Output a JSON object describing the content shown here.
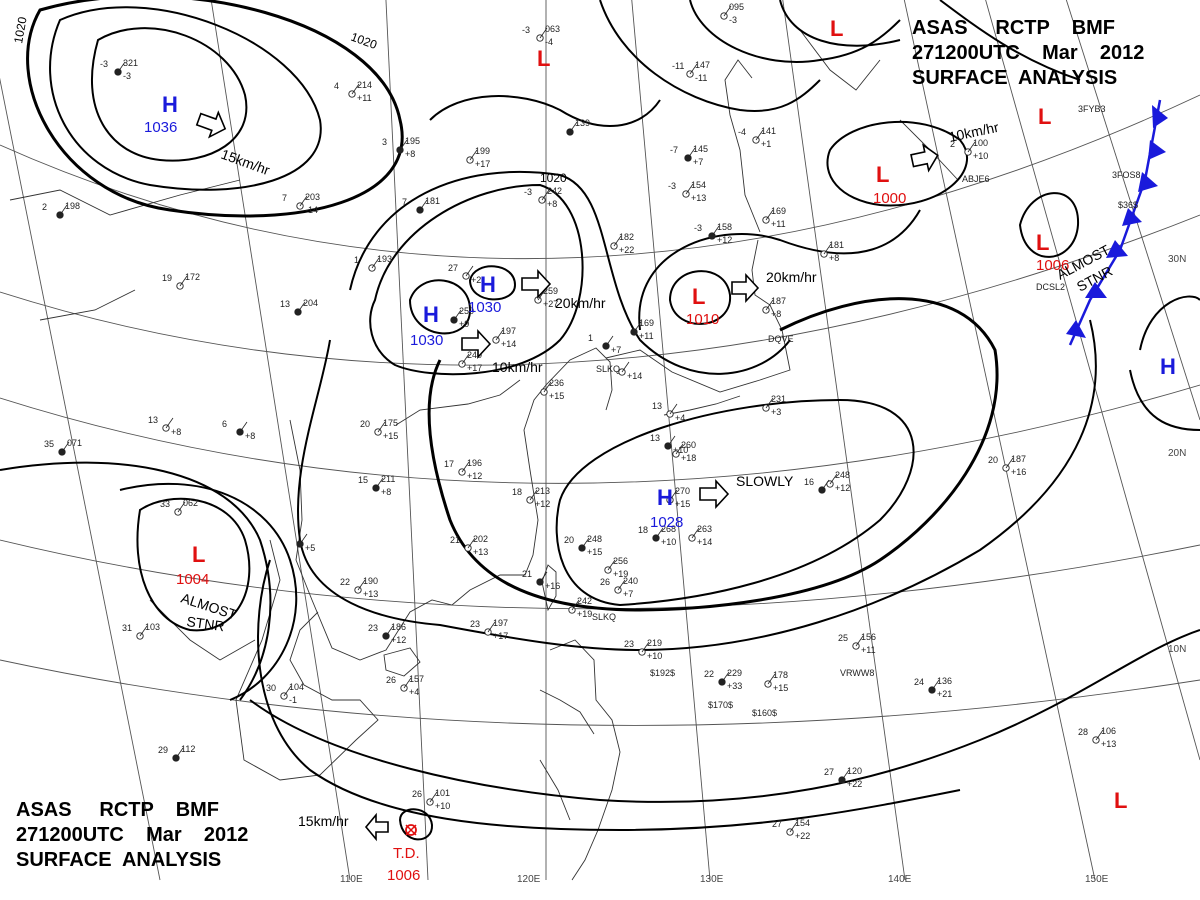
{
  "header": {
    "title_row1": [
      "ASAS",
      "RCTP",
      "BMF"
    ],
    "title_row2": [
      "271200UTC",
      "Mar",
      "2012"
    ],
    "title_row3": "SURFACE  ANALYSIS"
  },
  "colors": {
    "high": "#1a1adb",
    "low": "#e01010",
    "front": "#1a1adb",
    "isobar": "#000000",
    "grid": "#666666"
  },
  "isobar_labels": [
    "1020",
    "1020",
    "1020"
  ],
  "pressure_centers": [
    {
      "type": "H",
      "value": "1036",
      "motion": "15km/hr"
    },
    {
      "type": "H",
      "value": "1030",
      "motion": "20km/hr"
    },
    {
      "type": "H",
      "value": "1030",
      "motion": "10km/hr"
    },
    {
      "type": "H",
      "value": "1028",
      "motion": "SLOWLY"
    },
    {
      "type": "H",
      "value": ""
    },
    {
      "type": "L",
      "value": "1010",
      "motion": "20km/hr"
    },
    {
      "type": "L",
      "value": "1000",
      "motion": "10km/hr"
    },
    {
      "type": "L",
      "value": "1006",
      "note": [
        "ALMOST",
        "STNR"
      ]
    },
    {
      "type": "L",
      "value": "1004",
      "note": [
        "ALMOST",
        "STNR"
      ]
    },
    {
      "type": "L",
      "value": ""
    },
    {
      "type": "L",
      "value": ""
    },
    {
      "type": "L",
      "value": ""
    },
    {
      "type": "L",
      "value": ""
    }
  ],
  "tropical_depression": {
    "label": "T.D.",
    "value": "1006",
    "motion": "15km/hr"
  },
  "longitude_labels": [
    "110E",
    "120E",
    "130E",
    "140E",
    "150E"
  ],
  "latitude_labels": [
    "30N",
    "20N",
    "10N"
  ],
  "stations": [
    {
      "t": "-3",
      "p": "321",
      "d": "-3"
    },
    {
      "t": "4",
      "p": "214",
      "d": "+11"
    },
    {
      "t": "-3",
      "p": "063",
      "d": "-4"
    },
    {
      "t": "",
      "p": "139",
      "d": ""
    },
    {
      "t": "-11",
      "p": "147",
      "d": "-11"
    },
    {
      "t": "",
      "p": "095",
      "d": "-3"
    },
    {
      "t": "-7",
      "p": "145",
      "d": "+7"
    },
    {
      "t": "-4",
      "p": "141",
      "d": "+1"
    },
    {
      "t": "2",
      "p": "100",
      "d": "+10"
    },
    {
      "t": "3",
      "p": "195",
      "d": "+8"
    },
    {
      "t": "",
      "p": "199",
      "d": "+17"
    },
    {
      "t": "7",
      "p": "203",
      "d": "-14"
    },
    {
      "t": "7",
      "p": "181",
      "d": ""
    },
    {
      "t": "-3",
      "p": "242",
      "d": "+8"
    },
    {
      "t": "-3",
      "p": "154",
      "d": "+13"
    },
    {
      "t": "-3",
      "p": "158",
      "d": "+12"
    },
    {
      "t": "",
      "p": "169",
      "d": "+11"
    },
    {
      "t": "",
      "p": "182",
      "d": "+22"
    },
    {
      "t": "2",
      "p": "198",
      "d": ""
    },
    {
      "t": "19",
      "p": "172",
      "d": ""
    },
    {
      "t": "1",
      "p": "193",
      "d": ""
    },
    {
      "t": "13",
      "p": "204",
      "d": ""
    },
    {
      "t": "27",
      "p": "",
      "d": "+2"
    },
    {
      "t": "",
      "p": "259",
      "d": "+27"
    },
    {
      "t": "",
      "p": "250",
      "d": "+9"
    },
    {
      "t": "",
      "p": "197",
      "d": "+14"
    },
    {
      "t": "",
      "p": "240",
      "d": "+17"
    },
    {
      "t": "",
      "p": "169",
      "d": "+11"
    },
    {
      "t": "",
      "p": "187",
      "d": "+8"
    },
    {
      "t": "",
      "p": "181",
      "d": "+8"
    },
    {
      "t": "1",
      "p": "",
      "d": "+7"
    },
    {
      "t": "",
      "p": "236",
      "d": "+15"
    },
    {
      "t": "",
      "p": "",
      "d": "+14"
    },
    {
      "t": "6",
      "p": "",
      "d": "+8"
    },
    {
      "t": "13",
      "p": "",
      "d": "+8"
    },
    {
      "t": "20",
      "p": "175",
      "d": "+15"
    },
    {
      "t": "35",
      "p": "071",
      "d": ""
    },
    {
      "t": "13",
      "p": "",
      "d": "+4"
    },
    {
      "t": "",
      "p": "231",
      "d": "+3"
    },
    {
      "t": "13",
      "p": "",
      "d": "+10"
    },
    {
      "t": "",
      "p": "260",
      "d": "+18"
    },
    {
      "t": "",
      "p": "248",
      "d": "+12"
    },
    {
      "t": "16",
      "p": "",
      "d": ""
    },
    {
      "t": "20",
      "p": "187",
      "d": "+16"
    },
    {
      "t": "17",
      "p": "196",
      "d": "+12"
    },
    {
      "t": "15",
      "p": "211",
      "d": "+8"
    },
    {
      "t": "18",
      "p": "213",
      "d": "+12"
    },
    {
      "t": "",
      "p": "270",
      "d": "+15"
    },
    {
      "t": "18",
      "p": "268",
      "d": "+10"
    },
    {
      "t": "",
      "p": "263",
      "d": "+14"
    },
    {
      "t": "21",
      "p": "202",
      "d": "+13"
    },
    {
      "t": "20",
      "p": "248",
      "d": "+15"
    },
    {
      "t": "",
      "p": "256",
      "d": "+19"
    },
    {
      "t": "26",
      "p": "240",
      "d": "+7"
    },
    {
      "t": "21",
      "p": "",
      "d": "+16"
    },
    {
      "t": "",
      "p": "242",
      "d": "+19"
    },
    {
      "t": "33",
      "p": "062",
      "d": ""
    },
    {
      "t": "",
      "p": "",
      "d": "+5"
    },
    {
      "t": "22",
      "p": "190",
      "d": "+13"
    },
    {
      "t": "31",
      "p": "103",
      "d": ""
    },
    {
      "t": "23",
      "p": "186",
      "d": "+12"
    },
    {
      "t": "23",
      "p": "197",
      "d": "+17"
    },
    {
      "t": "23",
      "p": "219",
      "d": "+10"
    },
    {
      "t": "22",
      "p": "229",
      "d": "+33"
    },
    {
      "t": "",
      "p": "178",
      "d": "+15"
    },
    {
      "t": "25",
      "p": "156",
      "d": "+11"
    },
    {
      "t": "24",
      "p": "136",
      "d": "+21"
    },
    {
      "t": "26",
      "p": "157",
      "d": "+4"
    },
    {
      "t": "30",
      "p": "104",
      "d": "-1"
    },
    {
      "t": "29",
      "p": "112",
      "d": ""
    },
    {
      "t": "26",
      "p": "101",
      "d": "+10"
    },
    {
      "t": "28",
      "p": "106",
      "d": "+13"
    },
    {
      "t": "27",
      "p": "120",
      "d": "+22"
    },
    {
      "t": "27",
      "p": "154",
      "d": "+22"
    }
  ],
  "station_codes": [
    "3FYB3",
    "3FOS8",
    "ABJE6",
    "DCSL2",
    "DQVE",
    "SLKQ",
    "SLKQ",
    "VRWW8",
    "$192$",
    "$170$",
    "$160$",
    "$36$"
  ]
}
